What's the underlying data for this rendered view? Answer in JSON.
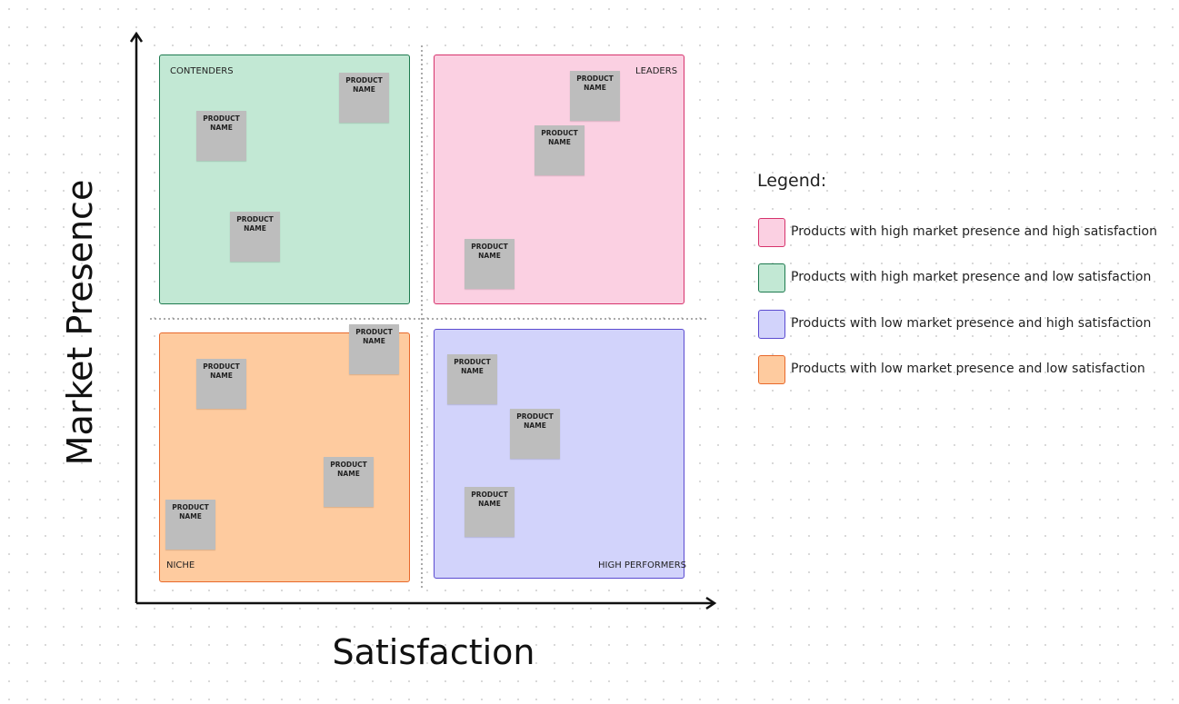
{
  "axes": {
    "y_title": "Market Presence",
    "x_title": "Satisfaction"
  },
  "quadrants": [
    {
      "label": "CONTENDERS",
      "products": [
        "PRODUCT NAME",
        "PRODUCT NAME",
        "PRODUCT NAME"
      ]
    },
    {
      "label": "LEADERS",
      "products": [
        "PRODUCT NAME",
        "PRODUCT NAME",
        "PRODUCT NAME"
      ]
    },
    {
      "label": "NICHE",
      "products": [
        "PRODUCT NAME",
        "PRODUCT NAME",
        "PRODUCT NAME",
        "PRODUCT NAME"
      ]
    },
    {
      "label": "HIGH PERFORMERS",
      "products": [
        "PRODUCT NAME",
        "PRODUCT NAME",
        "PRODUCT NAME"
      ]
    }
  ],
  "legend": {
    "title": "Legend:",
    "items": [
      "Products with high market presence and high satisfaction",
      "Products with high market presence and low satisfaction",
      "Products with low market presence and high satisfaction",
      "Products with low market presence and low satisfaction"
    ]
  }
}
